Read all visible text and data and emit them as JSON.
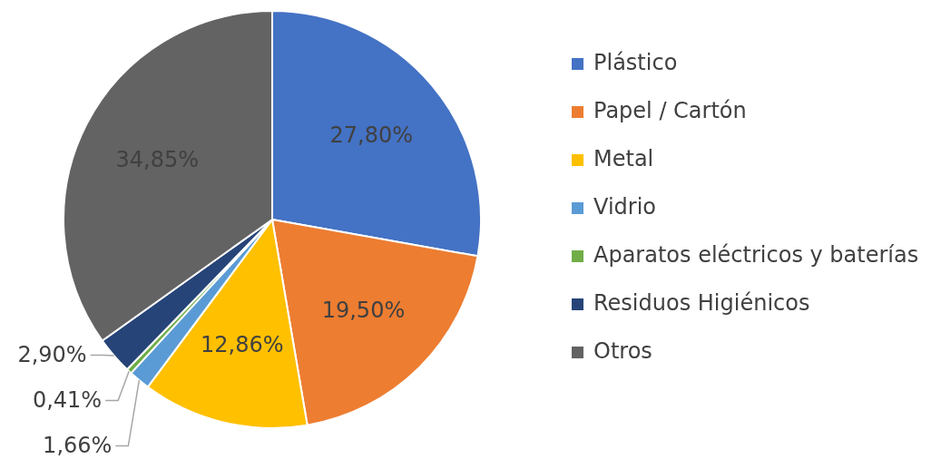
{
  "chart_data": {
    "type": "pie",
    "categories": [
      "Plástico",
      "Papel / Cartón",
      "Metal",
      "Vidrio",
      "Aparatos eléctricos y baterías",
      "Residuos Higiénicos",
      "Otros"
    ],
    "values": [
      27.8,
      19.5,
      12.86,
      1.66,
      0.41,
      2.9,
      34.85
    ],
    "value_labels": [
      "27,80%",
      "19,50%",
      "12,86%",
      "1,66%",
      "0,41%",
      "2,90%",
      "34,85%"
    ],
    "colors": [
      "#4472c4",
      "#ed7d31",
      "#ffc000",
      "#5b9bd5",
      "#70ad47",
      "#264478",
      "#636363"
    ],
    "legend": "right"
  }
}
